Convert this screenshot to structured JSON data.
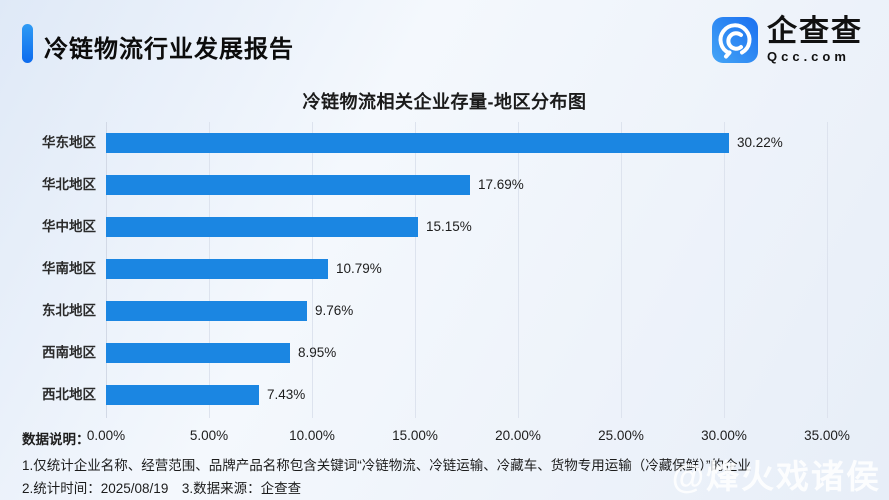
{
  "header": {
    "title": "冷链物流行业发展报告",
    "logo": {
      "name": "企查查",
      "domain": "Qcc.com"
    }
  },
  "chart_data": {
    "type": "bar",
    "orientation": "horizontal",
    "title": "冷链物流相关企业存量-地区分布图",
    "categories": [
      "华东地区",
      "华北地区",
      "华中地区",
      "华南地区",
      "东北地区",
      "西南地区",
      "西北地区"
    ],
    "values": [
      30.22,
      17.69,
      15.15,
      10.79,
      9.76,
      8.95,
      7.43
    ],
    "value_labels": [
      "30.22%",
      "17.69%",
      "15.15%",
      "10.79%",
      "9.76%",
      "8.95%",
      "7.43%"
    ],
    "x_ticks": [
      "0.00%",
      "5.00%",
      "10.00%",
      "15.00%",
      "20.00%",
      "25.00%",
      "30.00%",
      "35.00%"
    ],
    "xlim": [
      0,
      35
    ],
    "grid": true,
    "legend": false,
    "bar_color": "#1b86e2"
  },
  "footer": {
    "data_note_label": "数据说明：",
    "notes": [
      "1.仅统计企业名称、经营范围、品牌产品名称包含关键词“冷链物流、冷链运输、冷藏车、货物专用运输（冷藏保鲜）”的企业",
      "2.统计时间：2025/08/19　3.数据来源：企查查"
    ]
  },
  "watermark": "@烽火戏诸侯",
  "colors": {
    "accent_blue": "#1373f0",
    "bar_blue": "#1b86e2",
    "background": "#edf2fa"
  }
}
